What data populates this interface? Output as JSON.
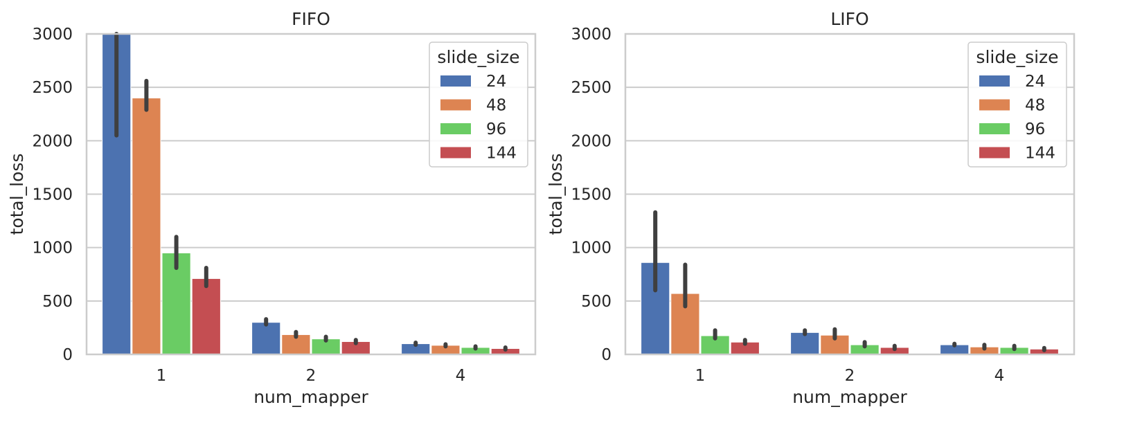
{
  "chart_data": [
    {
      "type": "bar",
      "title": "FIFO",
      "xlabel": "num_mapper",
      "ylabel": "total_loss",
      "categories": [
        "1",
        "2",
        "4"
      ],
      "ylim": [
        0,
        3000
      ],
      "yticks": [
        0,
        500,
        1000,
        1500,
        2000,
        2500,
        3000
      ],
      "grid": true,
      "legend": {
        "title": "slide_size",
        "placement": "top-right"
      },
      "series": [
        {
          "name": "24",
          "color": "#4c72b0",
          "values": [
            3000,
            300,
            100
          ],
          "err_low": [
            2050,
            280,
            90
          ],
          "err_high": [
            3000,
            330,
            110
          ]
        },
        {
          "name": "48",
          "color": "#dd8452",
          "values": [
            2400,
            185,
            85
          ],
          "err_low": [
            2290,
            165,
            75
          ],
          "err_high": [
            2560,
            210,
            95
          ]
        },
        {
          "name": "96",
          "color": "#6acc64",
          "values": [
            950,
            145,
            65
          ],
          "err_low": [
            810,
            130,
            55
          ],
          "err_high": [
            1100,
            165,
            75
          ]
        },
        {
          "name": "144",
          "color": "#c44e52",
          "values": [
            710,
            120,
            55
          ],
          "err_low": [
            640,
            105,
            45
          ],
          "err_high": [
            810,
            135,
            65
          ]
        }
      ]
    },
    {
      "type": "bar",
      "title": "LIFO",
      "xlabel": "num_mapper",
      "ylabel": "total_loss",
      "categories": [
        "1",
        "2",
        "4"
      ],
      "ylim": [
        0,
        3000
      ],
      "yticks": [
        0,
        500,
        1000,
        1500,
        2000,
        2500,
        3000
      ],
      "grid": true,
      "legend": {
        "title": "slide_size",
        "placement": "top-right"
      },
      "series": [
        {
          "name": "24",
          "color": "#4c72b0",
          "values": [
            860,
            205,
            90
          ],
          "err_low": [
            600,
            190,
            85
          ],
          "err_high": [
            1330,
            225,
            100
          ]
        },
        {
          "name": "48",
          "color": "#dd8452",
          "values": [
            570,
            180,
            70
          ],
          "err_low": [
            450,
            150,
            55
          ],
          "err_high": [
            840,
            235,
            90
          ]
        },
        {
          "name": "96",
          "color": "#6acc64",
          "values": [
            175,
            90,
            65
          ],
          "err_low": [
            150,
            75,
            50
          ],
          "err_high": [
            225,
            115,
            80
          ]
        },
        {
          "name": "144",
          "color": "#c44e52",
          "values": [
            115,
            65,
            50
          ],
          "err_low": [
            100,
            50,
            40
          ],
          "err_high": [
            135,
            80,
            60
          ]
        }
      ]
    }
  ]
}
